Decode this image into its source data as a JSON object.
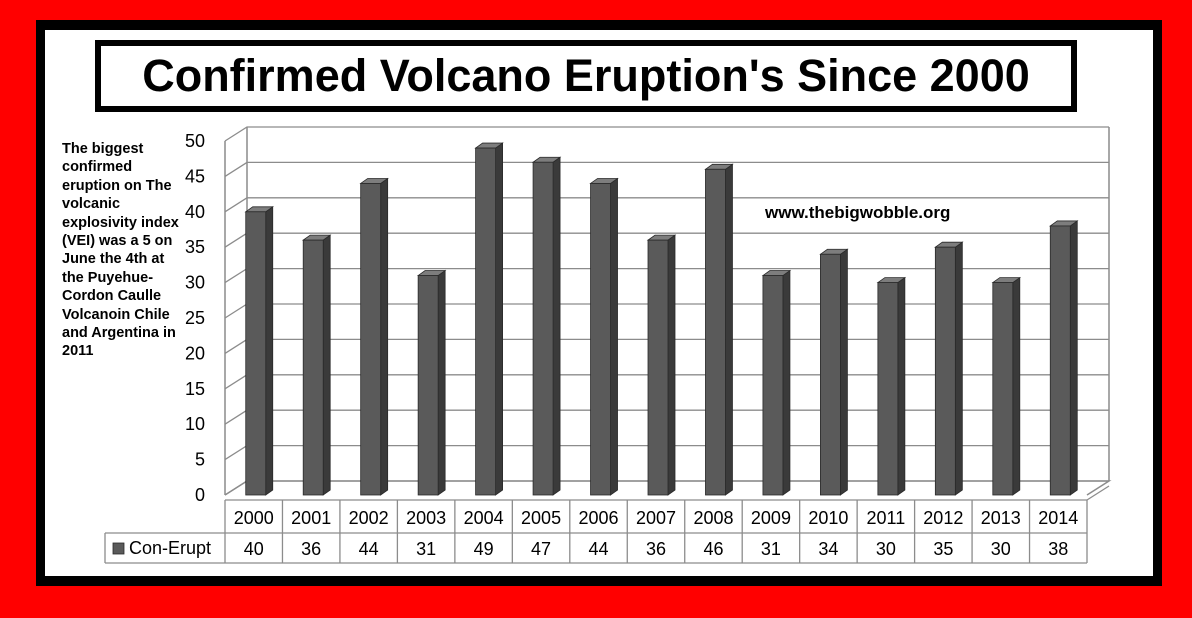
{
  "header": {
    "title": "Confirmed Volcano Eruption's Since 2000"
  },
  "note": {
    "text": "The biggest confirmed eruption on The volcanic explosivity index (VEI) was a 5 on June the 4th at the Puyehue-Cordon Caulle Volcanoin Chile and Argentina in 2011"
  },
  "watermark": {
    "text": "www.thebigwobble.org"
  },
  "colors": {
    "background": "#ff0000",
    "frame": "#000000",
    "bar_front": "#5a5a5a",
    "bar_side": "#3a3a3a",
    "bar_top": "#7d7d7d",
    "grid": "#8c8c8c"
  },
  "chart_data": {
    "type": "bar",
    "title": "Confirmed Volcano Eruption's Since 2000",
    "categories": [
      "2000",
      "2001",
      "2002",
      "2003",
      "2004",
      "2005",
      "2006",
      "2007",
      "2008",
      "2009",
      "2010",
      "2011",
      "2012",
      "2013",
      "2014"
    ],
    "series": [
      {
        "name": "Con-Erupt",
        "values": [
          40,
          36,
          44,
          31,
          49,
          47,
          44,
          36,
          46,
          31,
          34,
          30,
          35,
          30,
          38
        ]
      }
    ],
    "y_ticks": [
      "0",
      "5",
      "10",
      "15",
      "20",
      "25",
      "30",
      "35",
      "40",
      "45",
      "50"
    ],
    "ylim": [
      0,
      50
    ],
    "grid": true,
    "style": "3d-column",
    "legend_placement": "data-table-left",
    "data_table": true
  }
}
